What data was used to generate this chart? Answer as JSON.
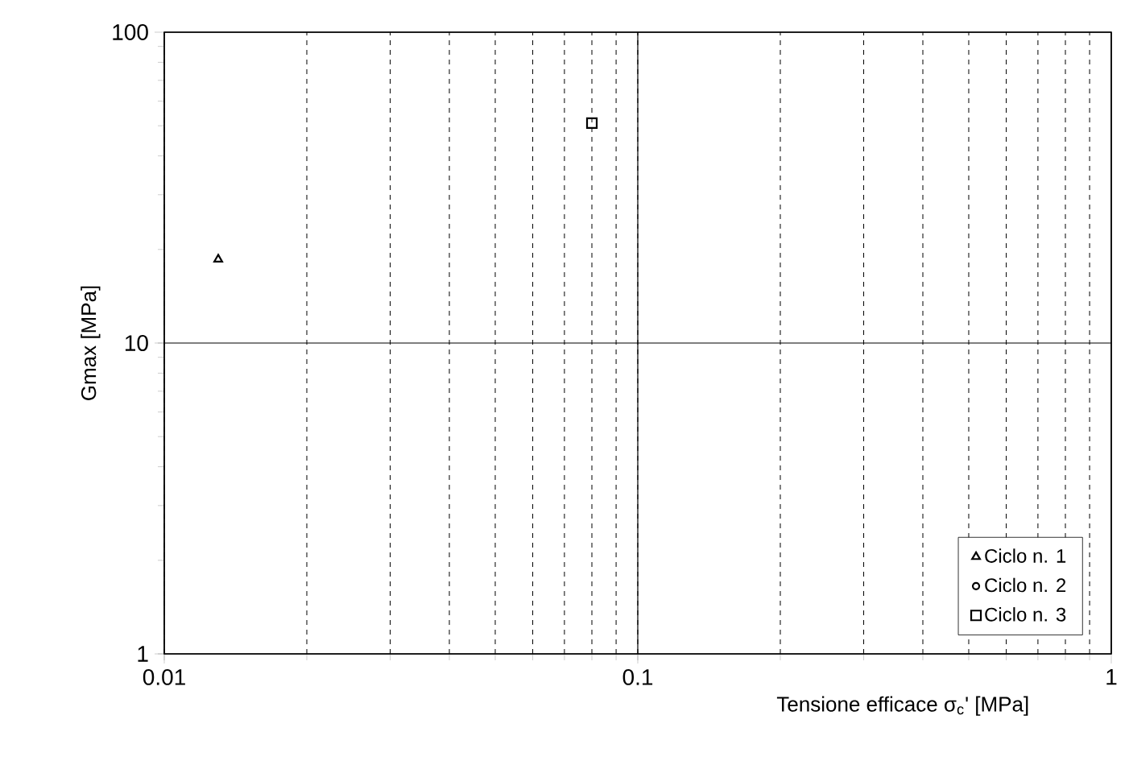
{
  "chart_data": {
    "type": "scatter",
    "xlabel": "Tensione efficace σ$_{c}$' [MPa]",
    "ylabel": "Gmax [MPa]",
    "log": "xy",
    "xlim": [
      0.01,
      1
    ],
    "ylim": [
      1,
      100
    ],
    "xticks": [
      0.01,
      0.1,
      1
    ],
    "yticks": [
      1,
      10,
      100
    ],
    "grid": true,
    "legend": "bottom right",
    "series": [
      {
        "name": "Ciclo n. 1",
        "color": "#000000",
        "marker": "triangle",
        "x": [
          0.013
        ],
        "values": [
          18.6
        ]
      },
      {
        "name": "Ciclo n. 2",
        "color": "#000000",
        "marker": "circle",
        "x": [
          null
        ],
        "values": [
          null
        ]
      },
      {
        "name": "Ciclo n. 3",
        "color": "#000000",
        "marker": "square",
        "x": [
          0.08
        ],
        "values": [
          51
        ]
      }
    ]
  }
}
